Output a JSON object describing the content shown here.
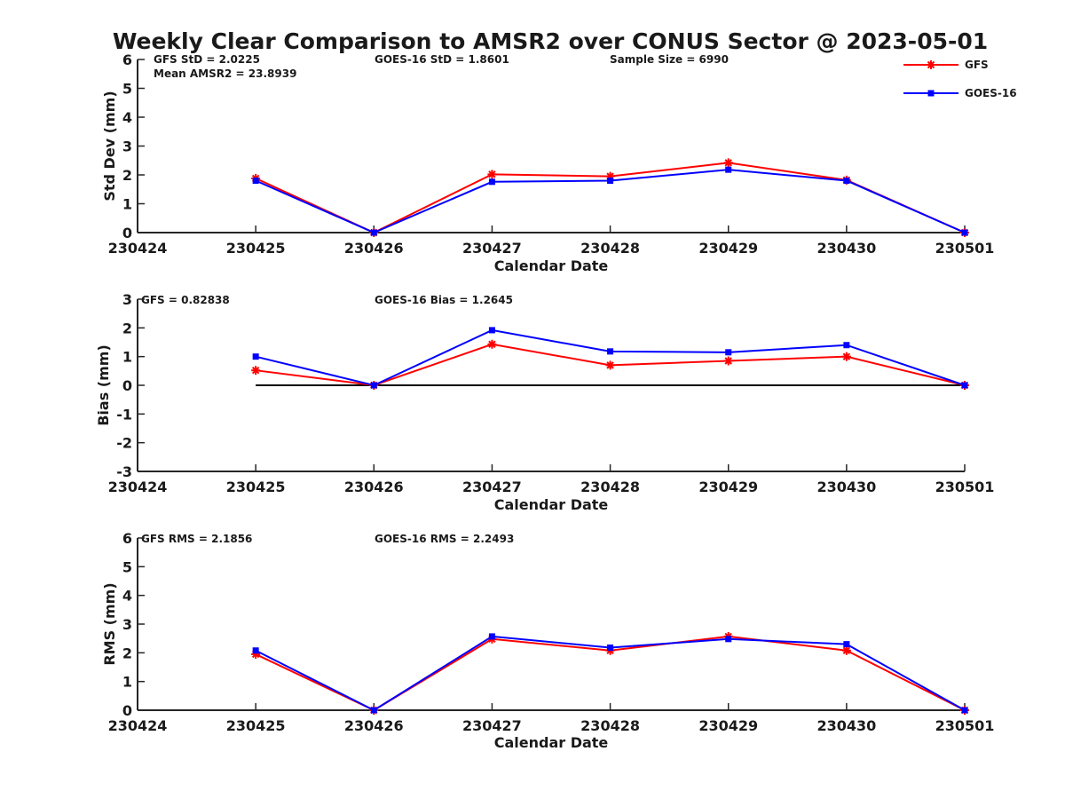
{
  "chart_data": {
    "title": "Weekly Clear Comparison to AMSR2 over CONUS Sector @ 2023-05-01",
    "legend": {
      "placement": "top-right",
      "entries": [
        {
          "name": "GFS",
          "color": "#ff0000",
          "marker": "asterisk"
        },
        {
          "name": "GOES-16",
          "color": "#0000ff",
          "marker": "square"
        }
      ]
    },
    "panels": [
      {
        "id": "std",
        "type": "line",
        "x_ticks": [
          "230424",
          "230425",
          "230426",
          "230427",
          "230428",
          "230429",
          "230430",
          "230501"
        ],
        "xlabel": "Calendar Date",
        "ylabel": "Std Dev (mm)",
        "ylim": [
          0,
          6
        ],
        "y_ticks": [
          0,
          1,
          2,
          3,
          4,
          5,
          6
        ],
        "zero_line": false,
        "annotations": [
          {
            "id": "gfs",
            "text": "GFS StD = 2.0225"
          },
          {
            "id": "mean",
            "text": "Mean AMSR2 = 23.8939"
          },
          {
            "id": "goes",
            "text": "GOES-16 StD = 1.8601"
          },
          {
            "id": "sample",
            "text": "Sample Size = 6990"
          }
        ],
        "series": [
          {
            "name": "GFS",
            "color": "#ff0000",
            "marker": "asterisk",
            "x": [
              "230425",
              "230426",
              "230427",
              "230428",
              "230429",
              "230430",
              "230501"
            ],
            "values": [
              1.88,
              0.0,
              2.02,
              1.95,
              2.42,
              1.82,
              0.0
            ]
          },
          {
            "name": "GOES-16",
            "color": "#0000ff",
            "marker": "square",
            "x": [
              "230425",
              "230426",
              "230427",
              "230428",
              "230429",
              "230430",
              "230501"
            ],
            "values": [
              1.8,
              0.0,
              1.76,
              1.8,
              2.18,
              1.8,
              0.0
            ]
          }
        ]
      },
      {
        "id": "bias",
        "type": "line",
        "x_ticks": [
          "230424",
          "230425",
          "230426",
          "230427",
          "230428",
          "230429",
          "230430",
          "230501"
        ],
        "xlabel": "Calendar Date",
        "ylabel": "Bias (mm)",
        "ylim": [
          -3,
          3
        ],
        "y_ticks": [
          -3,
          -2,
          -1,
          0,
          1,
          2,
          3
        ],
        "zero_line": true,
        "annotations": [
          {
            "id": "gfs",
            "text": "GFS = 0.82838"
          },
          {
            "id": "goes",
            "text": "GOES-16 Bias  = 1.2645"
          }
        ],
        "series": [
          {
            "name": "GFS",
            "color": "#ff0000",
            "marker": "asterisk",
            "x": [
              "230425",
              "230426",
              "230427",
              "230428",
              "230429",
              "230430",
              "230501"
            ],
            "values": [
              0.52,
              0.0,
              1.43,
              0.7,
              0.85,
              1.0,
              0.0
            ]
          },
          {
            "name": "GOES-16",
            "color": "#0000ff",
            "marker": "square",
            "x": [
              "230425",
              "230426",
              "230427",
              "230428",
              "230429",
              "230430",
              "230501"
            ],
            "values": [
              1.0,
              0.0,
              1.92,
              1.18,
              1.15,
              1.4,
              0.0
            ]
          }
        ]
      },
      {
        "id": "rms",
        "type": "line",
        "x_ticks": [
          "230424",
          "230425",
          "230426",
          "230427",
          "230428",
          "230429",
          "230430",
          "230501"
        ],
        "xlabel": "Calendar Date",
        "ylabel": "RMS (mm)",
        "ylim": [
          0,
          6
        ],
        "y_ticks": [
          0,
          1,
          2,
          3,
          4,
          5,
          6
        ],
        "zero_line": false,
        "annotations": [
          {
            "id": "gfs",
            "text": "GFS RMS = 2.1856"
          },
          {
            "id": "goes",
            "text": "GOES-16 RMS = 2.2493"
          }
        ],
        "series": [
          {
            "name": "GFS",
            "color": "#ff0000",
            "marker": "asterisk",
            "x": [
              "230425",
              "230426",
              "230427",
              "230428",
              "230429",
              "230430",
              "230501"
            ],
            "values": [
              1.95,
              0.0,
              2.48,
              2.08,
              2.57,
              2.08,
              0.0
            ]
          },
          {
            "name": "GOES-16",
            "color": "#0000ff",
            "marker": "square",
            "x": [
              "230425",
              "230426",
              "230427",
              "230428",
              "230429",
              "230430",
              "230501"
            ],
            "values": [
              2.08,
              0.0,
              2.57,
              2.18,
              2.48,
              2.3,
              0.0
            ]
          }
        ]
      }
    ]
  }
}
